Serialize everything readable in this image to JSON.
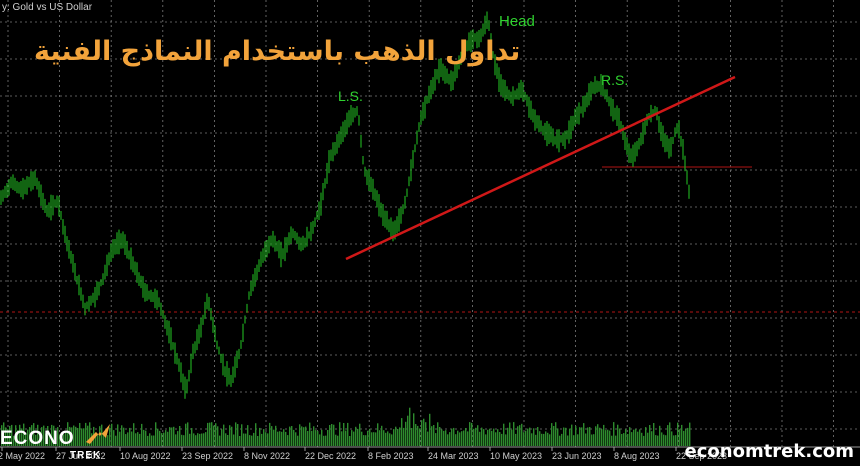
{
  "header": {
    "symbol_title": "y: Gold vs US Dollar"
  },
  "overlay": {
    "arabic_title": "تداول الذهب باستخدام النماذج الفنية",
    "brand_right": "economtrek.com",
    "logo_left": "ECONO",
    "logo_left_sub": "TREK"
  },
  "chart_data": {
    "type": "bar",
    "title": "",
    "instrument": "Gold vs US Dollar",
    "pattern": "head-and-shoulders",
    "x_ticks": [
      "2 May 2022",
      "27 Jun 2022",
      "10 Aug 2022",
      "23 Sep 2022",
      "8 Nov 2022",
      "22 Dec 2022",
      "8 Feb 2023",
      "24 Mar 2023",
      "10 May 2023",
      "23 Jun 2023",
      "8 Aug 2023",
      "22 Sep 2023"
    ],
    "annotations": [
      {
        "label": "L.S.",
        "date": "2023-01-31"
      },
      {
        "label": "Head",
        "date": "2023-05-04"
      },
      {
        "label": "R.S.",
        "date": "2023-07-20"
      }
    ],
    "neckline_color": "#d01818",
    "price_color": "#1fa61f",
    "volume_color": "#2e8b2e",
    "grid": true
  }
}
